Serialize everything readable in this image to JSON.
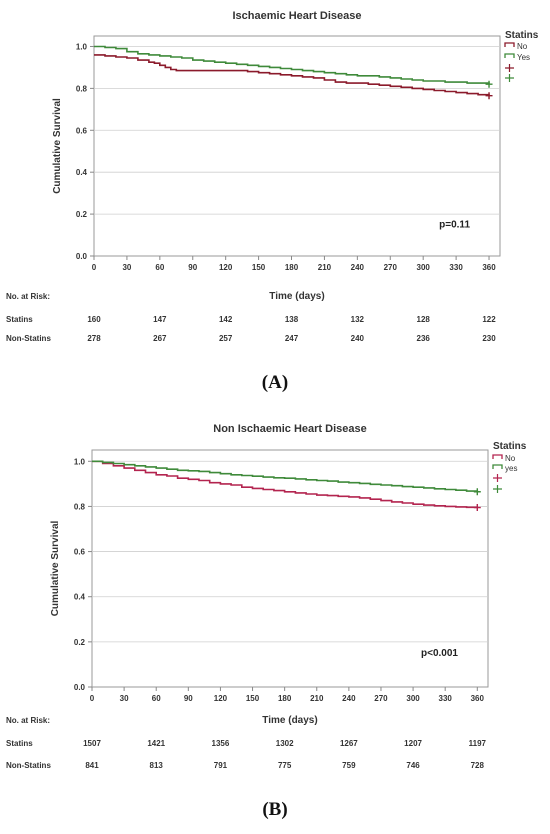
{
  "chart_data": [
    {
      "type": "line",
      "title": "Ischaemic Heart Disease",
      "xlabel": "Time (days)",
      "ylabel": "Cumulative Survival",
      "xlim": [
        0,
        370
      ],
      "ylim": [
        0,
        1.05
      ],
      "x_ticks": [
        "0",
        "30",
        "60",
        "90",
        "120",
        "150",
        "180",
        "210",
        "240",
        "270",
        "300",
        "330",
        "360"
      ],
      "y_ticks": [
        "0.0",
        "0.2",
        "0.4",
        "0.6",
        "0.8",
        "1.0"
      ],
      "legend_title": "Statins",
      "legend_placement": "top-right, outside plot",
      "grid": "horizontal",
      "annotation": "p=0.11",
      "series": [
        {
          "name": "No",
          "color": "#8b1a2b",
          "x": [
            0,
            10,
            20,
            30,
            40,
            50,
            55,
            60,
            65,
            70,
            75,
            90,
            120,
            140,
            150,
            160,
            170,
            180,
            190,
            200,
            210,
            220,
            230,
            240,
            250,
            260,
            270,
            280,
            290,
            300,
            310,
            320,
            330,
            340,
            350,
            360
          ],
          "y": [
            0.96,
            0.955,
            0.95,
            0.945,
            0.935,
            0.925,
            0.92,
            0.91,
            0.9,
            0.89,
            0.885,
            0.885,
            0.885,
            0.88,
            0.875,
            0.87,
            0.865,
            0.86,
            0.855,
            0.85,
            0.84,
            0.83,
            0.825,
            0.825,
            0.82,
            0.815,
            0.81,
            0.805,
            0.8,
            0.795,
            0.79,
            0.785,
            0.78,
            0.775,
            0.77,
            0.765
          ]
        },
        {
          "name": "Yes",
          "color": "#3f8a3a",
          "x": [
            0,
            10,
            20,
            30,
            40,
            50,
            60,
            70,
            80,
            90,
            100,
            110,
            120,
            130,
            140,
            150,
            160,
            170,
            180,
            190,
            200,
            210,
            220,
            230,
            240,
            250,
            260,
            270,
            280,
            290,
            300,
            310,
            320,
            330,
            340,
            350,
            360
          ],
          "y": [
            1.0,
            0.995,
            0.99,
            0.975,
            0.965,
            0.96,
            0.955,
            0.95,
            0.945,
            0.935,
            0.93,
            0.925,
            0.92,
            0.915,
            0.91,
            0.905,
            0.9,
            0.895,
            0.89,
            0.885,
            0.88,
            0.875,
            0.87,
            0.865,
            0.86,
            0.86,
            0.855,
            0.85,
            0.845,
            0.84,
            0.835,
            0.835,
            0.83,
            0.83,
            0.825,
            0.825,
            0.82
          ]
        }
      ],
      "risk_table": {
        "title": "No. at Risk:",
        "times": [
          0,
          60,
          120,
          180,
          240,
          300,
          360
        ],
        "rows": [
          {
            "label": "Statins",
            "values": [
              "160",
              "147",
              "142",
              "138",
              "132",
              "128",
              "122"
            ]
          },
          {
            "label": "Non-Statins",
            "values": [
              "278",
              "267",
              "257",
              "247",
              "240",
              "236",
              "230"
            ]
          }
        ]
      },
      "panel_label": "(A)"
    },
    {
      "type": "line",
      "title": "Non Ischaemic Heart Disease",
      "xlabel": "Time (days)",
      "ylabel": "Cumulative Survival",
      "xlim": [
        0,
        370
      ],
      "ylim": [
        0,
        1.05
      ],
      "x_ticks": [
        "0",
        "30",
        "60",
        "90",
        "120",
        "150",
        "180",
        "210",
        "240",
        "270",
        "300",
        "330",
        "360"
      ],
      "y_ticks": [
        "0.0",
        "0.2",
        "0.4",
        "0.6",
        "0.8",
        "1.0"
      ],
      "legend_title": "Statins",
      "legend_placement": "top-right, outside plot",
      "grid": "horizontal",
      "annotation": "p<0.001",
      "series": [
        {
          "name": "No",
          "color": "#b3244f",
          "x": [
            0,
            10,
            20,
            30,
            40,
            50,
            60,
            70,
            80,
            90,
            100,
            110,
            120,
            130,
            140,
            150,
            160,
            170,
            180,
            190,
            200,
            210,
            220,
            230,
            240,
            250,
            260,
            270,
            280,
            290,
            300,
            310,
            320,
            330,
            340,
            350,
            360
          ],
          "y": [
            1.0,
            0.99,
            0.98,
            0.97,
            0.96,
            0.95,
            0.94,
            0.935,
            0.925,
            0.92,
            0.915,
            0.905,
            0.9,
            0.895,
            0.885,
            0.88,
            0.875,
            0.87,
            0.865,
            0.86,
            0.855,
            0.85,
            0.848,
            0.845,
            0.842,
            0.838,
            0.832,
            0.826,
            0.82,
            0.815,
            0.81,
            0.806,
            0.803,
            0.8,
            0.798,
            0.796,
            0.795
          ]
        },
        {
          "name": "yes",
          "color": "#3f8a3a",
          "x": [
            0,
            10,
            20,
            30,
            40,
            50,
            60,
            70,
            80,
            90,
            100,
            110,
            120,
            130,
            140,
            150,
            160,
            170,
            180,
            190,
            200,
            210,
            220,
            230,
            240,
            250,
            260,
            270,
            280,
            290,
            300,
            310,
            320,
            330,
            340,
            350,
            360
          ],
          "y": [
            1.0,
            0.995,
            0.99,
            0.985,
            0.98,
            0.975,
            0.97,
            0.965,
            0.96,
            0.958,
            0.955,
            0.95,
            0.945,
            0.94,
            0.937,
            0.934,
            0.93,
            0.927,
            0.925,
            0.922,
            0.918,
            0.915,
            0.912,
            0.908,
            0.905,
            0.902,
            0.898,
            0.895,
            0.892,
            0.888,
            0.885,
            0.882,
            0.878,
            0.875,
            0.872,
            0.868,
            0.865
          ]
        }
      ],
      "risk_table": {
        "title": "No. at Risk:",
        "times": [
          0,
          60,
          120,
          180,
          240,
          300,
          360
        ],
        "rows": [
          {
            "label": "Statins",
            "values": [
              "1507",
              "1421",
              "1356",
              "1302",
              "1267",
              "1207",
              "1197"
            ]
          },
          {
            "label": "Non-Statins",
            "values": [
              "841",
              "813",
              "791",
              "775",
              "759",
              "746",
              "728"
            ]
          }
        ]
      },
      "panel_label": "(B)"
    }
  ]
}
